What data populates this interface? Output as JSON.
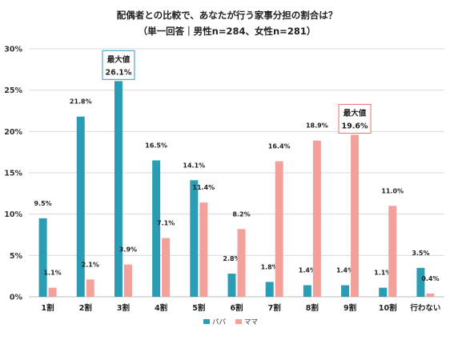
{
  "chart_data": {
    "type": "bar",
    "title": "配偶者との比較で、あなたが行う家事分担の割合は？",
    "subtitle": "（単一回答｜男性n=284、女性n=281）",
    "categories": [
      "1割",
      "2割",
      "3割",
      "4割",
      "5割",
      "6割",
      "7割",
      "8割",
      "9割",
      "10割",
      "行わない"
    ],
    "series": [
      {
        "name": "パパ",
        "color": "#2a9db5",
        "values": [
          9.5,
          21.8,
          26.1,
          16.5,
          14.1,
          2.8,
          1.8,
          1.4,
          1.4,
          1.1,
          3.5
        ],
        "labels": [
          "9.5%",
          "21.8%",
          "26.1%",
          "16.5%",
          "14.1%",
          "2.8%",
          "1.8%",
          "1.4%",
          "1.4%",
          "1.1%",
          "3.5%"
        ]
      },
      {
        "name": "ママ",
        "color": "#f4a09b",
        "values": [
          1.1,
          2.1,
          3.9,
          7.1,
          11.4,
          8.2,
          16.4,
          18.9,
          19.6,
          11.0,
          0.4
        ],
        "labels": [
          "1.1%",
          "2.1%",
          "3.9%",
          "7.1%",
          "11.4%",
          "8.2%",
          "16.4%",
          "18.9%",
          "19.6%",
          "11.0%",
          "0.4%"
        ]
      }
    ],
    "ylim": [
      0,
      30
    ],
    "yticks": [
      0,
      5,
      10,
      15,
      20,
      25,
      30
    ],
    "yticklabels": [
      "0%",
      "5%",
      "10%",
      "15%",
      "20%",
      "25%",
      "30%"
    ],
    "grid": true,
    "legend": "bottom-center",
    "annotations": [
      {
        "series": 0,
        "index": 2,
        "label": "最大値",
        "value_text": "26.1%",
        "color": "#2a9db5"
      },
      {
        "series": 1,
        "index": 8,
        "label": "最大値",
        "value_text": "19.6%",
        "color": "#e8736c"
      }
    ]
  }
}
